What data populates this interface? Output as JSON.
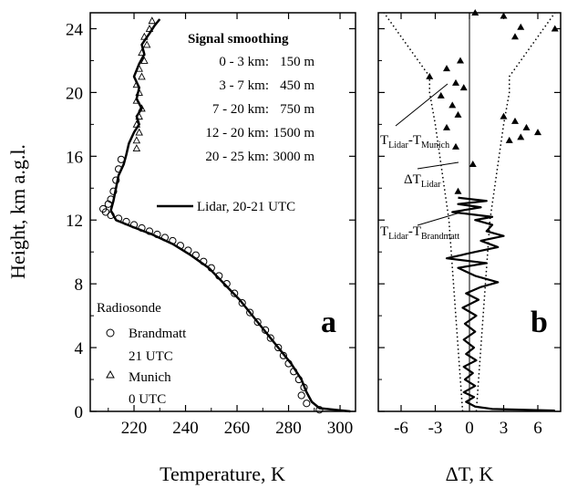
{
  "chart_data": [
    {
      "panel": "a",
      "type": "line",
      "xlabel": "Temperature, K",
      "ylabel": "Height, km a.g.l.",
      "xlim": [
        203,
        306
      ],
      "ylim": [
        0,
        25
      ],
      "x_ticks": [
        "220",
        "240",
        "260",
        "280",
        "300"
      ],
      "y_ticks": [
        "0",
        "4",
        "8",
        "12",
        "16",
        "20",
        "24"
      ],
      "smoothing": {
        "title": "Signal smoothing",
        "rows": [
          {
            "range": "0 -   3 km:",
            "value": "150 m"
          },
          {
            "range": "3 -   7 km:",
            "value": "450 m"
          },
          {
            "range": "7 - 20 km:",
            "value": "750 m"
          },
          {
            "range": "12 - 20 km:",
            "value": "1500 m"
          },
          {
            "range": "20 - 25 km:",
            "value": "3000 m"
          }
        ]
      },
      "lidar_label": "Lidar, 20-21 UTC",
      "radiosonde": {
        "title": "Radiosonde",
        "items": [
          {
            "symbol": "circle",
            "name": "Brandmatt",
            "time": "21 UTC"
          },
          {
            "symbol": "triangle",
            "name": "Munich",
            "time": "0 UTC"
          }
        ]
      },
      "series": [
        {
          "name": "Lidar, 20-21 UTC",
          "points": [
            [
              304,
              0
            ],
            [
              292,
              0.2
            ],
            [
              289,
              0.6
            ],
            [
              287,
              1.2
            ],
            [
              285,
              2.0
            ],
            [
              281,
              3.0
            ],
            [
              276,
              4.0
            ],
            [
              271,
              5.0
            ],
            [
              266,
              6.0
            ],
            [
              261,
              7.0
            ],
            [
              255,
              8.0
            ],
            [
              249,
              9.0
            ],
            [
              242,
              9.8
            ],
            [
              235,
              10.5
            ],
            [
              227,
              11.1
            ],
            [
              219,
              11.6
            ],
            [
              213,
              12.0
            ],
            [
              211,
              12.6
            ],
            [
              212,
              13.2
            ],
            [
              213,
              14.0
            ],
            [
              214,
              14.8
            ],
            [
              216,
              15.5
            ],
            [
              217,
              16.1
            ],
            [
              218,
              16.8
            ],
            [
              220,
              17.5
            ],
            [
              222,
              18.0
            ],
            [
              221,
              18.5
            ],
            [
              223,
              19.0
            ],
            [
              221,
              19.6
            ],
            [
              222,
              20.3
            ],
            [
              220,
              21.0
            ],
            [
              222,
              21.8
            ],
            [
              224,
              22.4
            ],
            [
              223,
              23.0
            ],
            [
              226,
              23.7
            ],
            [
              228,
              24.2
            ],
            [
              230,
              24.6
            ]
          ]
        },
        {
          "name": "Brandmatt",
          "points": [
            [
              292,
              0.1
            ],
            [
              287,
              0.5
            ],
            [
              285,
              1.0
            ],
            [
              286,
              1.5
            ],
            [
              284,
              2.0
            ],
            [
              282,
              2.5
            ],
            [
              280,
              3.0
            ],
            [
              278,
              3.5
            ],
            [
              276,
              4.0
            ],
            [
              273,
              4.6
            ],
            [
              271,
              5.1
            ],
            [
              268,
              5.6
            ],
            [
              265,
              6.2
            ],
            [
              262,
              6.8
            ],
            [
              259,
              7.4
            ],
            [
              256,
              8.0
            ],
            [
              253,
              8.5
            ],
            [
              250,
              9.0
            ],
            [
              247,
              9.4
            ],
            [
              244,
              9.8
            ],
            [
              241,
              10.1
            ],
            [
              238,
              10.4
            ],
            [
              235,
              10.7
            ],
            [
              232,
              10.9
            ],
            [
              229,
              11.1
            ],
            [
              226,
              11.3
            ],
            [
              223,
              11.5
            ],
            [
              220,
              11.7
            ],
            [
              217,
              11.9
            ],
            [
              214,
              12.1
            ],
            [
              211,
              12.3
            ],
            [
              209,
              12.5
            ],
            [
              208,
              12.7
            ],
            [
              210,
              13.0
            ],
            [
              211,
              13.3
            ],
            [
              212,
              13.8
            ],
            [
              213,
              14.5
            ],
            [
              214,
              15.2
            ],
            [
              215,
              15.8
            ]
          ]
        },
        {
          "name": "Munich",
          "points": [
            [
              221,
              16.5
            ],
            [
              221,
              17.0
            ],
            [
              222,
              17.5
            ],
            [
              221,
              18.0
            ],
            [
              222,
              18.5
            ],
            [
              223,
              19.0
            ],
            [
              221,
              19.5
            ],
            [
              222,
              20.0
            ],
            [
              221,
              20.5
            ],
            [
              223,
              21.0
            ],
            [
              222,
              21.5
            ],
            [
              224,
              22.0
            ],
            [
              223,
              22.5
            ],
            [
              225,
              23.0
            ],
            [
              224,
              23.5
            ],
            [
              226,
              24.0
            ],
            [
              227,
              24.5
            ]
          ]
        }
      ]
    },
    {
      "panel": "b",
      "type": "line",
      "xlabel": "ΔT, K",
      "xlim": [
        -8,
        8
      ],
      "ylim": [
        0,
        25
      ],
      "x_ticks": [
        "-6",
        "-3",
        "0",
        "3",
        "6"
      ],
      "annotations": [
        {
          "base": "T",
          "sub1": "Lidar",
          "mid": "-T",
          "sub2": "Munich"
        },
        {
          "base": "ΔT",
          "sub1": "Lidar"
        },
        {
          "base": "T",
          "sub1": "Lidar",
          "mid": "-T",
          "sub2": "Brandmatt"
        }
      ],
      "series": [
        {
          "name": "T_Lidar-T_Brandmatt",
          "points": [
            [
              7.5,
              0.05
            ],
            [
              2,
              0.15
            ],
            [
              0.5,
              0.3
            ],
            [
              -0.3,
              0.6
            ],
            [
              0.4,
              0.9
            ],
            [
              -0.5,
              1.2
            ],
            [
              0.5,
              1.6
            ],
            [
              -0.4,
              2.0
            ],
            [
              0.3,
              2.4
            ],
            [
              -0.5,
              2.8
            ],
            [
              0.6,
              3.2
            ],
            [
              -0.3,
              3.6
            ],
            [
              0.4,
              4.0
            ],
            [
              -0.5,
              4.5
            ],
            [
              0.5,
              5.0
            ],
            [
              -0.4,
              5.5
            ],
            [
              0.6,
              6.0
            ],
            [
              -0.6,
              6.5
            ],
            [
              0.8,
              7.0
            ],
            [
              -0.3,
              7.4
            ],
            [
              1.0,
              7.8
            ],
            [
              2.5,
              8.1
            ],
            [
              0.5,
              8.5
            ],
            [
              -1.0,
              9.0
            ],
            [
              1.5,
              9.3
            ],
            [
              -2.0,
              9.6
            ],
            [
              0.5,
              10.0
            ],
            [
              2.5,
              10.3
            ],
            [
              1.0,
              10.7
            ],
            [
              3.0,
              11.0
            ],
            [
              1.5,
              11.3
            ],
            [
              2.0,
              11.7
            ],
            [
              0.5,
              12.0
            ],
            [
              2.0,
              12.2
            ],
            [
              -1.5,
              12.5
            ],
            [
              1.0,
              12.8
            ],
            [
              -1.0,
              13.0
            ],
            [
              1.5,
              13.2
            ],
            [
              -1.0,
              13.4
            ]
          ]
        },
        {
          "name": "ΔT_Lidar+",
          "points": [
            [
              0.6,
              0
            ],
            [
              0.8,
              2
            ],
            [
              1.0,
              4
            ],
            [
              1.2,
              6
            ],
            [
              1.4,
              8
            ],
            [
              1.6,
              10
            ],
            [
              1.8,
              12
            ],
            [
              2.2,
              14
            ],
            [
              2.6,
              16
            ],
            [
              3.0,
              18
            ],
            [
              3.5,
              20
            ],
            [
              3.5,
              21
            ],
            [
              4.5,
              22
            ],
            [
              5.5,
              23
            ],
            [
              6.5,
              24
            ],
            [
              7.5,
              25
            ]
          ]
        },
        {
          "name": "ΔT_Lidar-",
          "points": [
            [
              -0.6,
              0
            ],
            [
              -0.8,
              2
            ],
            [
              -1.0,
              4
            ],
            [
              -1.2,
              6
            ],
            [
              -1.4,
              8
            ],
            [
              -1.6,
              10
            ],
            [
              -1.8,
              12
            ],
            [
              -2.2,
              14
            ],
            [
              -2.6,
              16
            ],
            [
              -3.0,
              18
            ],
            [
              -3.5,
              20
            ],
            [
              -3.5,
              21
            ],
            [
              -4.5,
              22
            ],
            [
              -5.5,
              23
            ],
            [
              -6.5,
              24
            ],
            [
              -7.5,
              25
            ]
          ]
        },
        {
          "name": "T_Lidar-T_Munich",
          "points": [
            [
              -1.2,
              16.6
            ],
            [
              -2.0,
              17.8
            ],
            [
              -1.0,
              18.6
            ],
            [
              -1.5,
              19.2
            ],
            [
              -2.5,
              19.8
            ],
            [
              -0.5,
              20.3
            ],
            [
              -1.2,
              20.6
            ],
            [
              -3.5,
              21.0
            ],
            [
              -2.0,
              21.5
            ],
            [
              -0.8,
              22.0
            ],
            [
              0.5,
              25.0
            ],
            [
              3.0,
              24.8
            ],
            [
              4.5,
              24.1
            ],
            [
              7.5,
              24.0
            ],
            [
              4.0,
              23.5
            ],
            [
              3.0,
              18.5
            ],
            [
              4.0,
              18.2
            ],
            [
              5.0,
              17.8
            ],
            [
              6.0,
              17.5
            ],
            [
              4.5,
              17.2
            ],
            [
              3.5,
              17.0
            ],
            [
              0.3,
              15.5
            ],
            [
              -1.0,
              13.8
            ]
          ]
        }
      ]
    }
  ]
}
